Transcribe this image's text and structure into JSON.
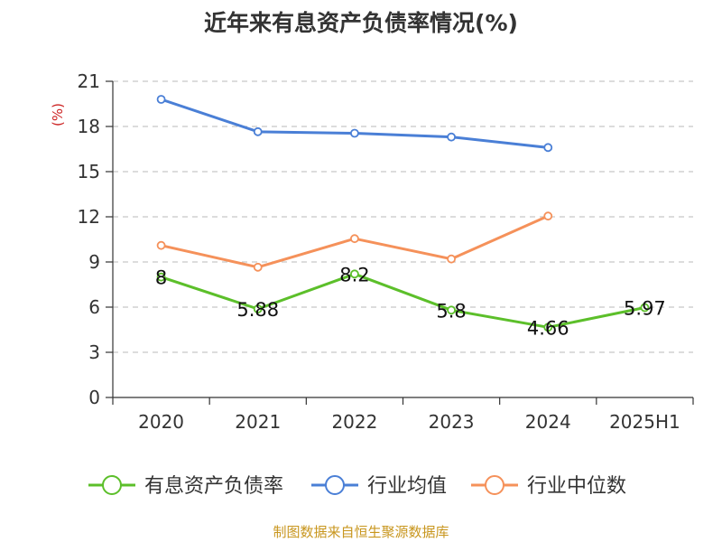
{
  "title": "近年来有息资产负债率情况(%)",
  "source": "制图数据来自恒生聚源数据库",
  "chart_data": {
    "type": "line",
    "title": "近年来有息资产负债率情况(%)",
    "ylabel": "(%)",
    "xlabel": "",
    "categories": [
      "2020",
      "2021",
      "2022",
      "2023",
      "2024",
      "2025H1"
    ],
    "ylim": [
      0,
      21
    ],
    "yticks": [
      0,
      3,
      6,
      9,
      12,
      15,
      18,
      21
    ],
    "grid": true,
    "legend": "bottom",
    "series": [
      {
        "name": "有息资产负债率",
        "color": "#5cbf2a",
        "values": [
          8,
          5.88,
          8.2,
          5.8,
          4.66,
          5.97
        ],
        "labels": [
          "8",
          "5.88",
          "8.2",
          "5.8",
          "4.66",
          "5.97"
        ]
      },
      {
        "name": "行业均值",
        "color": "#4a7fd6",
        "values": [
          19.8,
          17.65,
          17.55,
          17.3,
          16.6,
          null
        ]
      },
      {
        "name": "行业中位数",
        "color": "#f5915a",
        "values": [
          10.1,
          8.65,
          10.55,
          9.2,
          12.05,
          null
        ]
      }
    ]
  }
}
